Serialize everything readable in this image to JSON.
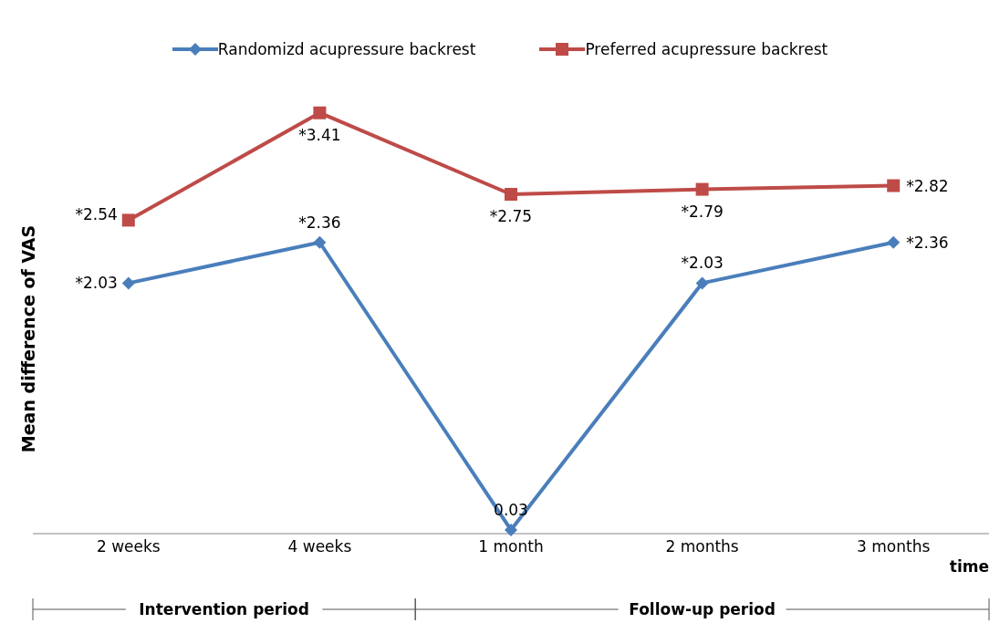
{
  "chart_data": {
    "type": "line",
    "xlabel": "time",
    "ylabel": "Mean difference of VAS",
    "categories": [
      "2 weeks",
      "4 weeks",
      "1 month",
      "2 months",
      "3 months"
    ],
    "series": [
      {
        "name": "Randomizd acupressure backrest",
        "color": "#4a7ebb",
        "marker": "diamond",
        "values": [
          2.03,
          2.36,
          0.03,
          2.03,
          2.36
        ],
        "value_labels": [
          "*2.03",
          "*2.36",
          "0.03",
          "*2.03",
          "*2.36"
        ]
      },
      {
        "name": "Preferred acupressure backrest",
        "color": "#be4b48",
        "marker": "square",
        "values": [
          2.54,
          3.41,
          2.75,
          2.79,
          2.82
        ],
        "value_labels": [
          "*2.54",
          "*3.41",
          "*2.75",
          "*2.79",
          "*2.82"
        ]
      }
    ],
    "annotations": [
      "Intervention period",
      "Follow-up period"
    ],
    "legend": "top",
    "tick_labels": "x"
  }
}
